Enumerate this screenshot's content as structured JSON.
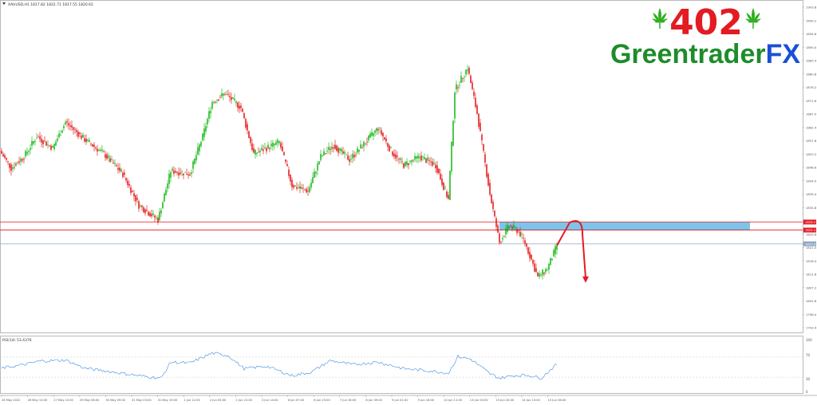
{
  "header": {
    "symbol_line": "XAUUSD,H1  1817.82 1822.71 1817.55 1820.62"
  },
  "logo": {
    "number": "402",
    "word_main": "Greentrader",
    "word_suffix": "FX",
    "colors": {
      "number": "#e31b23",
      "word": "#1e8c2a",
      "suffix": "#1a4fd6",
      "leaf": "#2fae1e"
    }
  },
  "indicator": {
    "label": "RSI(14) 53.4376",
    "levels": [
      "70",
      "30"
    ],
    "scale_labels": [
      "100",
      "0"
    ]
  },
  "chart_data": {
    "type": "candlestick",
    "symbol": "XAUUSD",
    "timeframe": "H1",
    "ylim": [
      1790,
      1905
    ],
    "price_scale_labels": [
      "1903.8",
      "1899.2",
      "1894.6",
      "1890.0",
      "1885.4",
      "1880.8",
      "1876.2",
      "1871.6",
      "1867.0",
      "1862.4",
      "1857.8",
      "1853.2",
      "1848.6",
      "1844.0",
      "1839.4",
      "1834.8",
      "1830.2",
      "1825.6",
      "1821.0",
      "1816.4",
      "1811.8",
      "1807.2",
      "1802.6",
      "1798.0",
      "1793.4"
    ],
    "x_ticks": [
      "26 May 2022",
      "26 May 13:00",
      "27 May 15:00",
      "29 May 08:00",
      "30 May 09:00",
      "31 May 03:00",
      "31 May 19:00",
      "1 Jun 12:00",
      "2 Jun 05:00",
      "2 Jun 21:00",
      "3 Jun 14:00",
      "6 Jun 07:00",
      "6 Jun 23:00",
      "7 Jun 16:00",
      "8 Jun 09:00",
      "9 Jun 01:00",
      "9 Jun 18:00",
      "10 Jun 11:00",
      "13 Jun 04:00",
      "13 Jun 20:00",
      "14 Jun 13:00",
      "15 Jun 06:00"
    ],
    "candle_colors": {
      "up": "#00b000",
      "down": "#e00000"
    },
    "path_anchors": [
      {
        "i": 0,
        "p": 1852
      },
      {
        "i": 6,
        "p": 1847
      },
      {
        "i": 14,
        "p": 1851
      },
      {
        "i": 22,
        "p": 1858
      },
      {
        "i": 32,
        "p": 1854
      },
      {
        "i": 40,
        "p": 1863
      },
      {
        "i": 52,
        "p": 1857
      },
      {
        "i": 64,
        "p": 1852
      },
      {
        "i": 76,
        "p": 1845
      },
      {
        "i": 86,
        "p": 1834
      },
      {
        "i": 98,
        "p": 1829
      },
      {
        "i": 106,
        "p": 1846
      },
      {
        "i": 118,
        "p": 1845
      },
      {
        "i": 126,
        "p": 1858
      },
      {
        "i": 132,
        "p": 1870
      },
      {
        "i": 140,
        "p": 1873
      },
      {
        "i": 150,
        "p": 1868
      },
      {
        "i": 158,
        "p": 1852
      },
      {
        "i": 166,
        "p": 1854
      },
      {
        "i": 174,
        "p": 1856
      },
      {
        "i": 182,
        "p": 1841
      },
      {
        "i": 192,
        "p": 1839
      },
      {
        "i": 200,
        "p": 1851
      },
      {
        "i": 208,
        "p": 1855
      },
      {
        "i": 218,
        "p": 1850
      },
      {
        "i": 228,
        "p": 1856
      },
      {
        "i": 236,
        "p": 1861
      },
      {
        "i": 244,
        "p": 1853
      },
      {
        "i": 252,
        "p": 1848
      },
      {
        "i": 262,
        "p": 1851
      },
      {
        "i": 272,
        "p": 1848
      },
      {
        "i": 280,
        "p": 1836
      },
      {
        "i": 284,
        "p": 1874
      },
      {
        "i": 292,
        "p": 1882
      },
      {
        "i": 298,
        "p": 1866
      },
      {
        "i": 306,
        "p": 1838
      },
      {
        "i": 312,
        "p": 1821
      },
      {
        "i": 318,
        "p": 1827
      },
      {
        "i": 324,
        "p": 1825
      },
      {
        "i": 328,
        "p": 1821
      },
      {
        "i": 336,
        "p": 1809
      },
      {
        "i": 342,
        "p": 1812
      },
      {
        "i": 348,
        "p": 1820
      }
    ],
    "levels": [
      {
        "name": "resistance-upper",
        "price": 1828.2,
        "color": "#e31b23",
        "label": "1828.2"
      },
      {
        "name": "resistance-lower",
        "price": 1825.4,
        "color": "#e31b23",
        "label": "1825.4"
      },
      {
        "name": "bid-line",
        "price": 1820.6,
        "color": "#8fa6c6",
        "label": "1820.6"
      }
    ],
    "zone": {
      "from_price": 1825.4,
      "to_price": 1828.2,
      "color": "#7cc4ea"
    },
    "projection": {
      "color": "#e31b23",
      "points": [
        {
          "i": 348,
          "p": 1820
        },
        {
          "i": 358,
          "p": 1828
        },
        {
          "i": 364,
          "p": 1824
        },
        {
          "i": 366,
          "p": 1807
        }
      ]
    },
    "rsi": {
      "color": "#3d8be0",
      "ylim": [
        0,
        100
      ],
      "anchors": [
        {
          "i": 0,
          "v": 48
        },
        {
          "i": 14,
          "v": 55
        },
        {
          "i": 24,
          "v": 62
        },
        {
          "i": 40,
          "v": 64
        },
        {
          "i": 52,
          "v": 48
        },
        {
          "i": 66,
          "v": 42
        },
        {
          "i": 86,
          "v": 33
        },
        {
          "i": 100,
          "v": 28
        },
        {
          "i": 106,
          "v": 60
        },
        {
          "i": 118,
          "v": 58
        },
        {
          "i": 132,
          "v": 78
        },
        {
          "i": 142,
          "v": 73
        },
        {
          "i": 152,
          "v": 47
        },
        {
          "i": 166,
          "v": 52
        },
        {
          "i": 182,
          "v": 33
        },
        {
          "i": 194,
          "v": 40
        },
        {
          "i": 206,
          "v": 63
        },
        {
          "i": 220,
          "v": 55
        },
        {
          "i": 236,
          "v": 60
        },
        {
          "i": 252,
          "v": 47
        },
        {
          "i": 270,
          "v": 42
        },
        {
          "i": 280,
          "v": 38
        },
        {
          "i": 286,
          "v": 71
        },
        {
          "i": 294,
          "v": 66
        },
        {
          "i": 306,
          "v": 37
        },
        {
          "i": 312,
          "v": 28
        },
        {
          "i": 320,
          "v": 33
        },
        {
          "i": 330,
          "v": 34
        },
        {
          "i": 338,
          "v": 28
        },
        {
          "i": 348,
          "v": 56
        }
      ]
    }
  }
}
